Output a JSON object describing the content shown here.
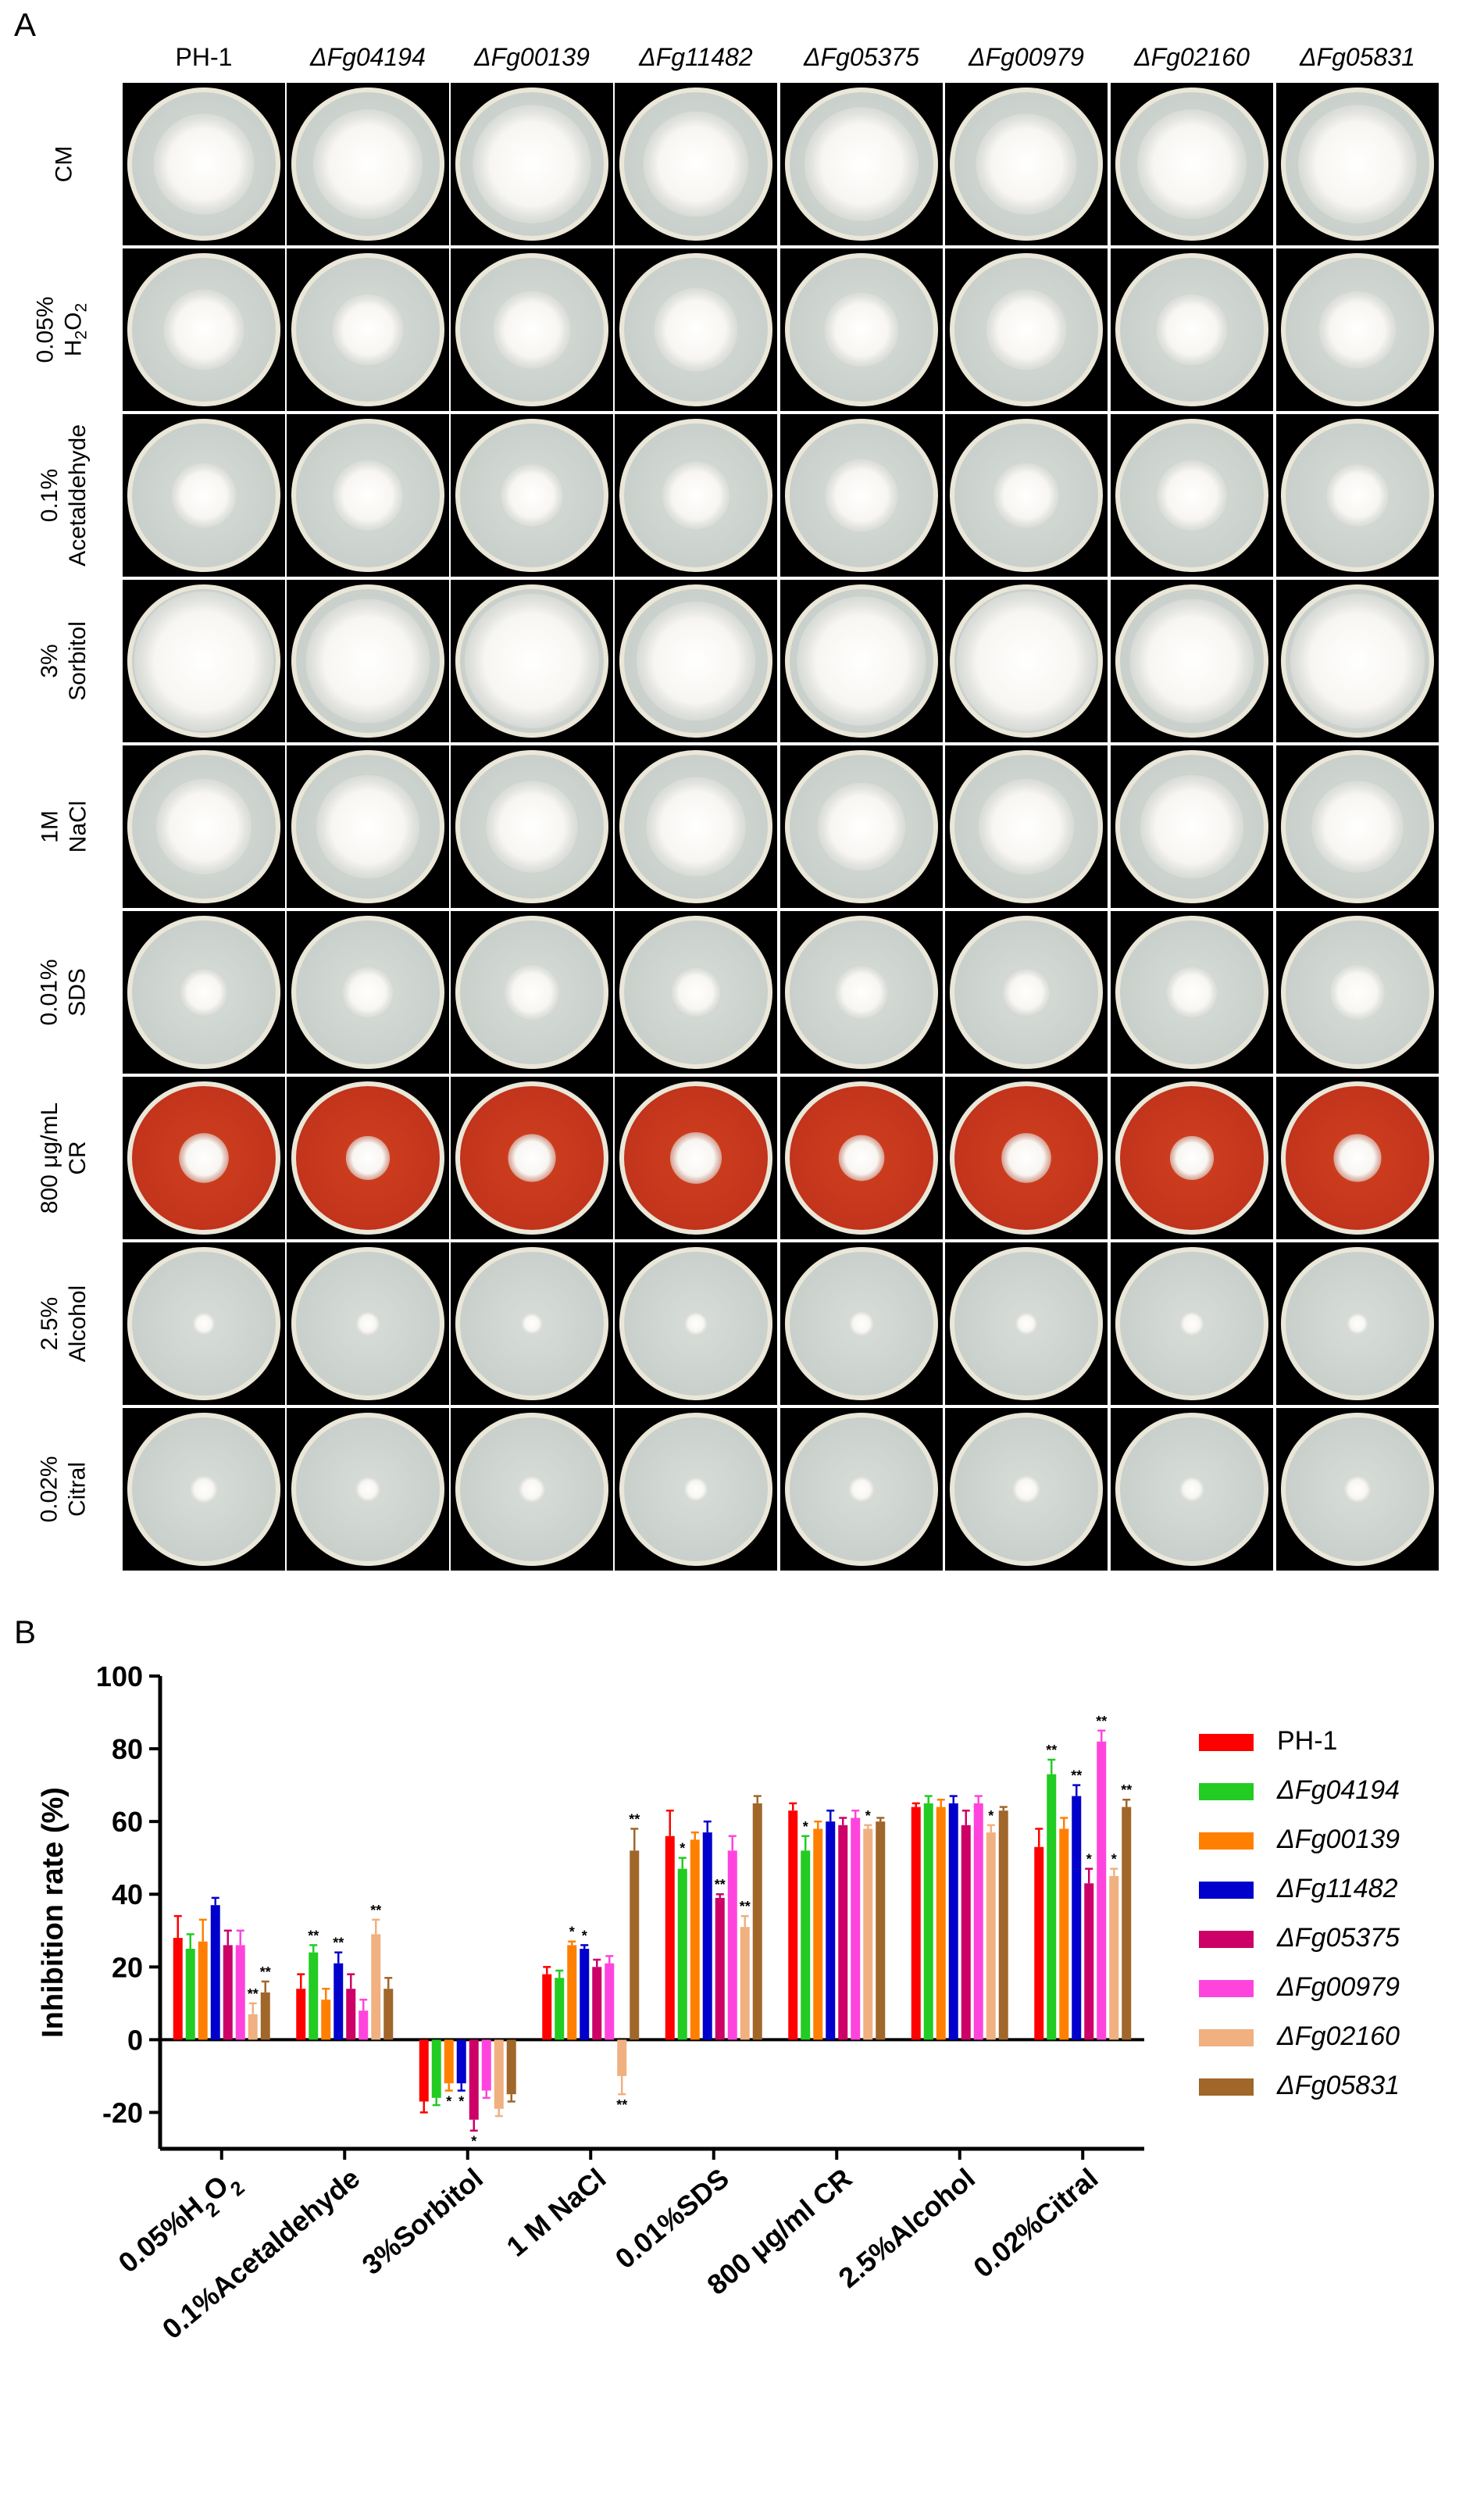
{
  "panel_a": {
    "label": "A",
    "strains": [
      "PH-1",
      "ΔFg04194",
      "ΔFg00139",
      "ΔFg11482",
      "ΔFg05375",
      "ΔFg00979",
      "ΔFg02160",
      "ΔFg05831"
    ],
    "conditions": [
      {
        "line1": "CM",
        "line2": ""
      },
      {
        "line1": "0.05%",
        "line2": "H2O2"
      },
      {
        "line1": "0.1%",
        "line2": "Acetaldehyde"
      },
      {
        "line1": "3%",
        "line2": "Sorbitol"
      },
      {
        "line1": "1M",
        "line2": "NaCl"
      },
      {
        "line1": "0.01%",
        "line2": "SDS"
      },
      {
        "line1": "800 μg/mL",
        "line2": "CR"
      },
      {
        "line1": "2.5%",
        "line2": "Alcohol"
      },
      {
        "line1": "0.02%",
        "line2": "Citral"
      }
    ],
    "colors": {
      "background": "#000000",
      "agar": "#c9d0cc",
      "rim": "#ebe7d8",
      "congo_red": "#c2341c",
      "mycelium": "#f8f6f2"
    }
  },
  "panel_b": {
    "label": "B"
  },
  "chart_data": {
    "type": "bar",
    "title": "",
    "ylabel": "Inhibition rate (%)",
    "xlabel": "",
    "ylim": [
      -30,
      100
    ],
    "yticks": [
      -20,
      0,
      20,
      40,
      60,
      80,
      100
    ],
    "categories": [
      "0.05%H2O2",
      "0.1%Acetaldehyde",
      "3%Sorbitol",
      "1 M NaCl",
      "0.01%SDS",
      "800 μg/ml CR",
      "2.5%Alcohol",
      "0.02%Citral"
    ],
    "legend_position": "right",
    "series": [
      {
        "name": "PH-1",
        "color": "#ff0000",
        "values": [
          28,
          14,
          -17,
          18,
          56,
          63,
          64,
          53
        ],
        "errors": [
          6,
          4,
          3,
          2,
          7,
          2,
          1,
          5
        ],
        "sig": [
          "",
          "",
          "",
          "",
          "",
          "",
          "",
          ""
        ]
      },
      {
        "name": "ΔFg04194",
        "color": "#22cc22",
        "values": [
          25,
          24,
          -16,
          17,
          47,
          52,
          65,
          73
        ],
        "errors": [
          4,
          2,
          2,
          2,
          3,
          4,
          2,
          4
        ],
        "sig": [
          "",
          "**",
          "",
          "",
          "*",
          "*",
          "",
          "**"
        ]
      },
      {
        "name": "ΔFg00139",
        "color": "#ff8000",
        "values": [
          27,
          11,
          -12,
          26,
          55,
          58,
          64,
          58
        ],
        "errors": [
          6,
          3,
          2,
          1,
          2,
          2,
          2,
          3
        ],
        "sig": [
          "",
          "",
          "*",
          "*",
          "",
          "",
          "",
          ""
        ]
      },
      {
        "name": "ΔFg11482",
        "color": "#0000cc",
        "values": [
          37,
          21,
          -12,
          25,
          57,
          60,
          65,
          67
        ],
        "errors": [
          2,
          3,
          2,
          1,
          3,
          3,
          2,
          3
        ],
        "sig": [
          "",
          "**",
          "*",
          "*",
          "",
          "",
          "",
          "**"
        ]
      },
      {
        "name": "ΔFg05375",
        "color": "#cc0066",
        "values": [
          26,
          14,
          -22,
          20,
          39,
          59,
          59,
          43
        ],
        "errors": [
          4,
          4,
          3,
          2,
          1,
          2,
          4,
          4
        ],
        "sig": [
          "",
          "",
          "*",
          "",
          "**",
          "",
          "",
          "*"
        ]
      },
      {
        "name": "ΔFg00979",
        "color": "#ff44dd",
        "values": [
          26,
          8,
          -14,
          21,
          52,
          61,
          65,
          82
        ],
        "errors": [
          4,
          3,
          2,
          2,
          4,
          2,
          2,
          3
        ],
        "sig": [
          "",
          "",
          "",
          "",
          "",
          "",
          "",
          "**"
        ]
      },
      {
        "name": "ΔFg02160",
        "color": "#f0b080",
        "values": [
          7,
          29,
          -19,
          -10,
          31,
          58,
          57,
          45
        ],
        "errors": [
          3,
          4,
          2,
          5,
          3,
          1,
          2,
          2
        ],
        "sig": [
          "**",
          "**",
          "",
          "**",
          "**",
          "*",
          "*",
          "*"
        ]
      },
      {
        "name": "ΔFg05831",
        "color": "#a0662a",
        "values": [
          13,
          14,
          -15,
          52,
          65,
          60,
          63,
          64
        ],
        "errors": [
          3,
          3,
          2,
          6,
          2,
          1,
          1,
          2
        ],
        "sig": [
          "**",
          "",
          "",
          "**",
          "",
          "",
          "",
          "**"
        ]
      }
    ]
  }
}
